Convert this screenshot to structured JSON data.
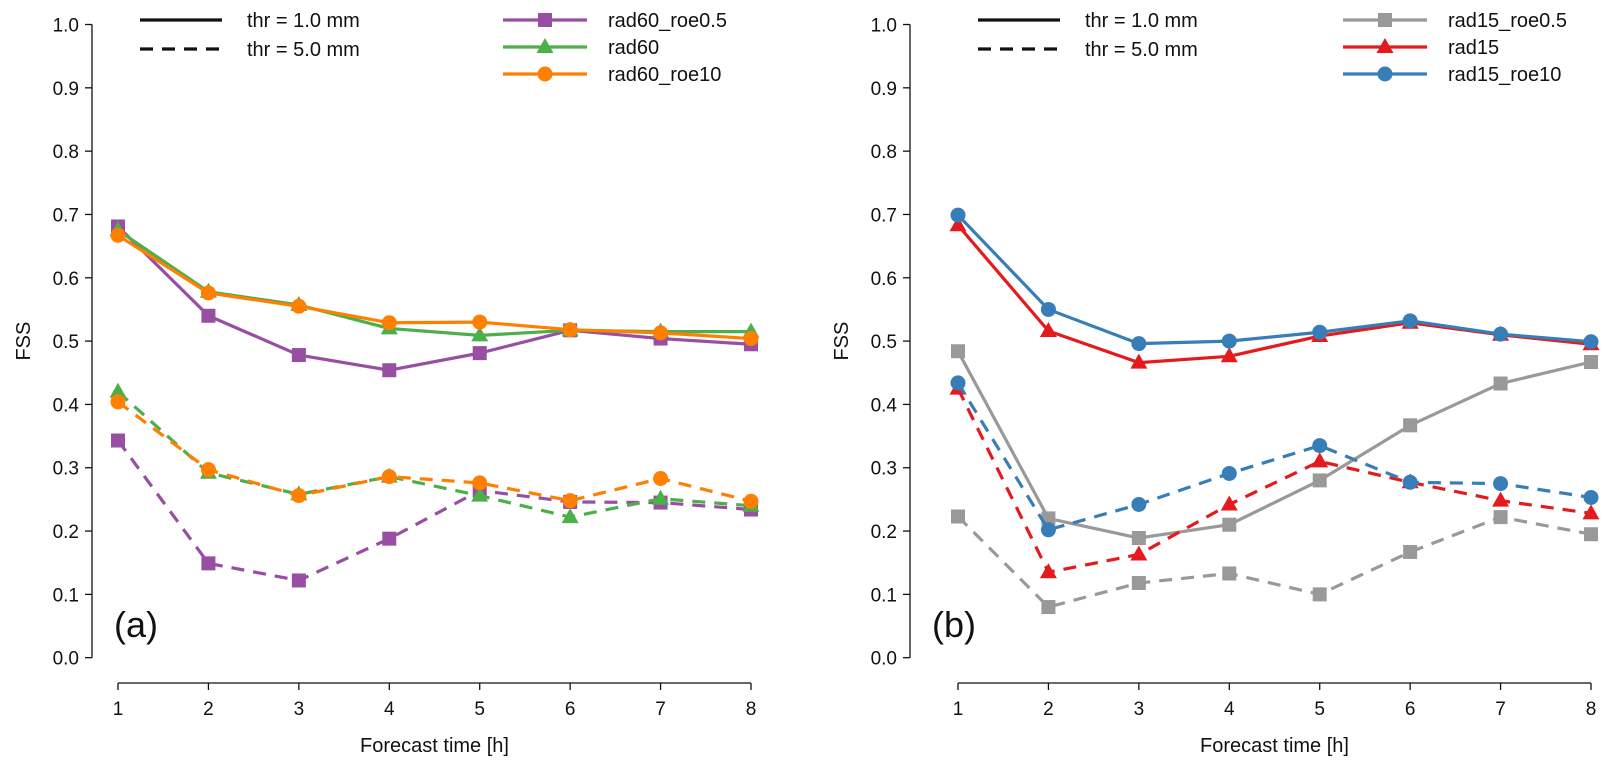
{
  "chart_data": [
    {
      "type": "line",
      "panel_label": "(a)",
      "xlabel": "Forecast time [h]",
      "ylabel": "FSS",
      "xlim": [
        1,
        8
      ],
      "ylim": [
        0.0,
        1.0
      ],
      "x": [
        1,
        2,
        3,
        4,
        5,
        6,
        7,
        8
      ],
      "xticks": [
        "1",
        "2",
        "3",
        "4",
        "5",
        "6",
        "7",
        "8"
      ],
      "yticks": [
        "0.0",
        "0.1",
        "0.2",
        "0.3",
        "0.4",
        "0.5",
        "0.6",
        "0.7",
        "0.8",
        "0.9",
        "1.0"
      ],
      "grid": false,
      "style_legend": [
        {
          "label": "thr = 1.0 mm",
          "linestyle": "solid"
        },
        {
          "label": "thr = 5.0 mm",
          "linestyle": "dashed"
        }
      ],
      "series_legend": [
        {
          "label": "rad60_roe0.5",
          "color": "#984ea3",
          "marker": "square"
        },
        {
          "label": "rad60",
          "color": "#4daf4a",
          "marker": "triangle"
        },
        {
          "label": "rad60_roe10",
          "color": "#ff7f00",
          "marker": "circle"
        }
      ],
      "series": [
        {
          "name": "rad60_roe0.5",
          "threshold": "thr = 1.0 mm",
          "color": "#984ea3",
          "marker": "square",
          "linestyle": "solid",
          "values": [
            0.681,
            0.54,
            0.478,
            0.454,
            0.481,
            0.517,
            0.504,
            0.495
          ]
        },
        {
          "name": "rad60",
          "threshold": "thr = 1.0 mm",
          "color": "#4daf4a",
          "marker": "triangle",
          "linestyle": "solid",
          "values": [
            0.675,
            0.578,
            0.557,
            0.52,
            0.509,
            0.517,
            0.515,
            0.515
          ]
        },
        {
          "name": "rad60_roe10",
          "threshold": "thr = 1.0 mm",
          "color": "#ff7f00",
          "marker": "circle",
          "linestyle": "solid",
          "values": [
            0.667,
            0.576,
            0.555,
            0.529,
            0.53,
            0.518,
            0.513,
            0.504
          ]
        },
        {
          "name": "rad60_roe0.5",
          "threshold": "thr = 5.0 mm",
          "color": "#984ea3",
          "marker": "square",
          "linestyle": "dashed",
          "values": [
            0.343,
            0.149,
            0.122,
            0.188,
            0.264,
            0.246,
            0.245,
            0.234
          ]
        },
        {
          "name": "rad60",
          "threshold": "thr = 5.0 mm",
          "color": "#4daf4a",
          "marker": "triangle",
          "linestyle": "dashed",
          "values": [
            0.42,
            0.292,
            0.258,
            0.286,
            0.256,
            0.222,
            0.251,
            0.24
          ]
        },
        {
          "name": "rad60_roe10",
          "threshold": "thr = 5.0 mm",
          "color": "#ff7f00",
          "marker": "circle",
          "linestyle": "dashed",
          "values": [
            0.404,
            0.297,
            0.256,
            0.286,
            0.276,
            0.248,
            0.283,
            0.247
          ]
        }
      ]
    },
    {
      "type": "line",
      "panel_label": "(b)",
      "xlabel": "Forecast time [h]",
      "ylabel": "FSS",
      "xlim": [
        1,
        8
      ],
      "ylim": [
        0.0,
        1.0
      ],
      "x": [
        1,
        2,
        3,
        4,
        5,
        6,
        7,
        8
      ],
      "xticks": [
        "1",
        "2",
        "3",
        "4",
        "5",
        "6",
        "7",
        "8"
      ],
      "yticks": [
        "0.0",
        "0.1",
        "0.2",
        "0.3",
        "0.4",
        "0.5",
        "0.6",
        "0.7",
        "0.8",
        "0.9",
        "1.0"
      ],
      "grid": false,
      "style_legend": [
        {
          "label": "thr = 1.0 mm",
          "linestyle": "solid"
        },
        {
          "label": "thr = 5.0 mm",
          "linestyle": "dashed"
        }
      ],
      "series_legend": [
        {
          "label": "rad15_roe0.5",
          "color": "#999999",
          "marker": "square"
        },
        {
          "label": "rad15",
          "color": "#e41a1c",
          "marker": "triangle"
        },
        {
          "label": "rad15_roe10",
          "color": "#377eb8",
          "marker": "circle"
        }
      ],
      "series": [
        {
          "name": "rad15_roe0.5",
          "threshold": "thr = 1.0 mm",
          "color": "#999999",
          "marker": "square",
          "linestyle": "solid",
          "values": [
            0.484,
            0.22,
            0.189,
            0.21,
            0.28,
            0.367,
            0.433,
            0.467
          ]
        },
        {
          "name": "rad15",
          "threshold": "thr = 1.0 mm",
          "color": "#e41a1c",
          "marker": "triangle",
          "linestyle": "solid",
          "values": [
            0.683,
            0.516,
            0.466,
            0.476,
            0.508,
            0.529,
            0.51,
            0.495
          ]
        },
        {
          "name": "rad15_roe10",
          "threshold": "thr = 1.0 mm",
          "color": "#377eb8",
          "marker": "circle",
          "linestyle": "solid",
          "values": [
            0.699,
            0.55,
            0.496,
            0.5,
            0.514,
            0.532,
            0.511,
            0.499
          ]
        },
        {
          "name": "rad15_roe0.5",
          "threshold": "thr = 5.0 mm",
          "color": "#999999",
          "marker": "square",
          "linestyle": "dashed",
          "values": [
            0.223,
            0.08,
            0.118,
            0.133,
            0.1,
            0.167,
            0.222,
            0.195
          ]
        },
        {
          "name": "rad15",
          "threshold": "thr = 5.0 mm",
          "color": "#e41a1c",
          "marker": "triangle",
          "linestyle": "dashed",
          "values": [
            0.425,
            0.135,
            0.163,
            0.242,
            0.31,
            0.277,
            0.248,
            0.228
          ]
        },
        {
          "name": "rad15_roe10",
          "threshold": "thr = 5.0 mm",
          "color": "#377eb8",
          "marker": "circle",
          "linestyle": "dashed",
          "values": [
            0.434,
            0.202,
            0.242,
            0.291,
            0.335,
            0.277,
            0.275,
            0.253
          ]
        }
      ]
    }
  ]
}
